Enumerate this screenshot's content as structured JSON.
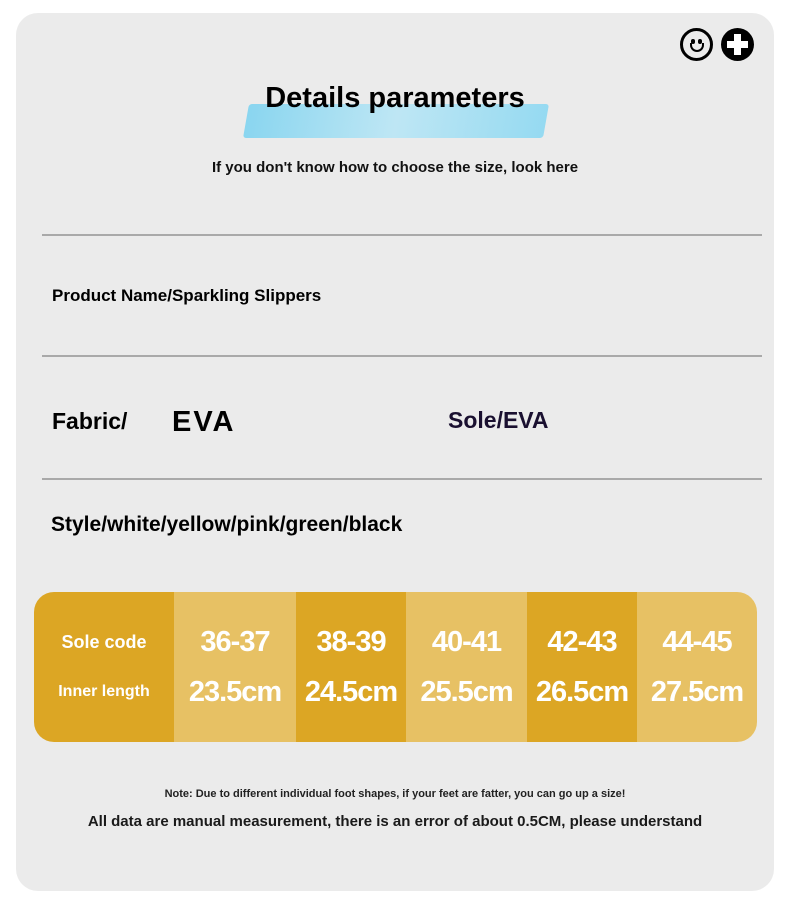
{
  "title": "Details parameters",
  "subtitle": "If you don't know how to choose the size, look here",
  "icons": [
    "smiley-icon",
    "plus-circle-icon"
  ],
  "product_name": "Product Name/Sparkling Slippers",
  "fabric_label": "Fabric/",
  "fabric_value": "EVA",
  "sole": "Sole/EVA",
  "style": "Style/white/yellow/pink/green/black",
  "size_table": {
    "row_labels": [
      "Sole code",
      "Inner length"
    ],
    "columns": [
      {
        "code": "36-37",
        "length": "23.5cm"
      },
      {
        "code": "38-39",
        "length": "24.5cm"
      },
      {
        "code": "40-41",
        "length": "25.5cm"
      },
      {
        "code": "42-43",
        "length": "26.5cm"
      },
      {
        "code": "44-45",
        "length": "27.5cm"
      }
    ],
    "colors": {
      "dark": "#dca624",
      "light": "#e7c164"
    }
  },
  "note": "Note: Due to different individual foot shapes, if your feet are fatter, you can go up a size!",
  "disclaimer": "All data are manual measurement, there is an error of about 0.5CM, please understand"
}
